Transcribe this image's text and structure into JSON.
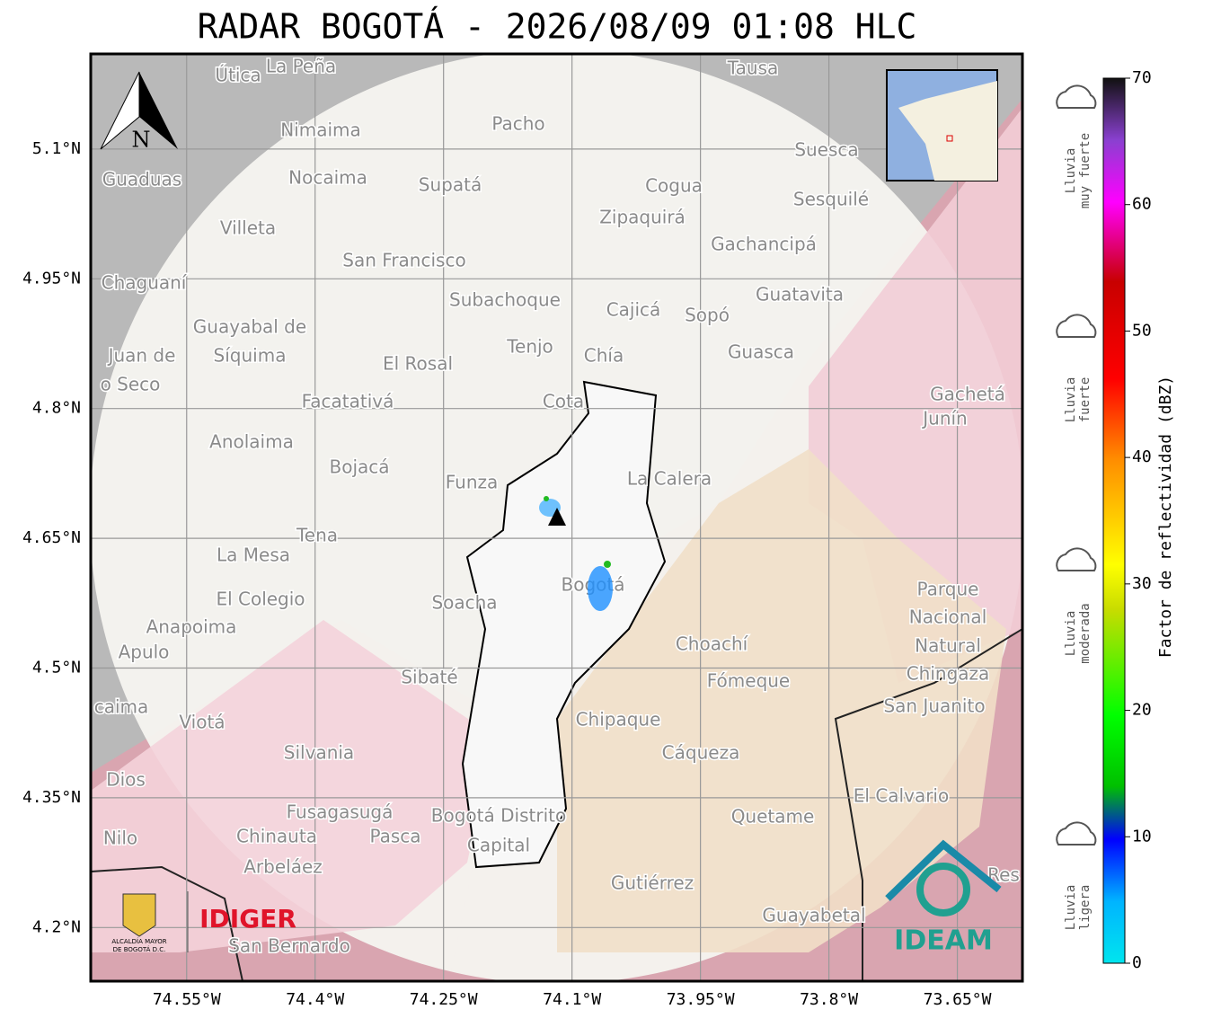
{
  "title": "RADAR BOGOTÁ - 2026/08/09 01:08 HLC",
  "map": {
    "lat_range": [
      4.138,
      5.21
    ],
    "lon_range": [
      -74.662,
      -73.574
    ],
    "lat_ticks": [
      {
        "value": 5.1,
        "label": "5.1°N"
      },
      {
        "value": 4.95,
        "label": "4.95°N"
      },
      {
        "value": 4.8,
        "label": "4.8°N"
      },
      {
        "value": 4.65,
        "label": "4.65°N"
      },
      {
        "value": 4.5,
        "label": "4.5°N"
      },
      {
        "value": 4.35,
        "label": "4.35°N"
      },
      {
        "value": 4.2,
        "label": "4.2°N"
      }
    ],
    "lon_ticks": [
      {
        "value": -74.55,
        "label": "74.55°W"
      },
      {
        "value": -74.4,
        "label": "74.4°W"
      },
      {
        "value": -74.25,
        "label": "74.25°W"
      },
      {
        "value": -74.1,
        "label": "74.1°W"
      },
      {
        "value": -73.95,
        "label": "73.95°W"
      },
      {
        "value": -73.8,
        "label": "73.8°W"
      },
      {
        "value": -73.65,
        "label": "73.65°W"
      }
    ],
    "north": "N",
    "places": [
      "Útica",
      "La Peña",
      "Tausa",
      "Pacho",
      "Nimaima",
      "Guaduas",
      "Nocaima",
      "Supatá",
      "Cogua",
      "Suesca",
      "Sesquilé",
      "Villeta",
      "Zipaquirá",
      "Gachancipá",
      "San Francisco",
      "Chaguaní",
      "Guatavita",
      "Subachoque",
      "Cajicá",
      "Sopó",
      "Guayabal de",
      "Síquima",
      "Juan de",
      "o Seco",
      "Tenjo",
      "Guasca",
      "El Rosal",
      "Chía",
      "Facatativá",
      "Cota",
      "Gachetá",
      "Junín",
      "Anolaima",
      "Bojacá",
      "Funza",
      "La Calera",
      "Tena",
      "La Mesa",
      "Soacha",
      "Bogotá",
      "El Colegio",
      "Parque",
      "Nacional",
      "Natural",
      "Chingaza",
      "Anapoima",
      "Apulo",
      "Choachí",
      "Fómeque",
      "Sibaté",
      "San Juanito",
      "caima",
      "Viotá",
      "Chipaque",
      "Silvania",
      "Cáqueza",
      "Dios",
      "El Calvario",
      "Fusagasugá",
      "Bogotá Distrito",
      "Quetame",
      "Nilo",
      "Chinauta",
      "Pasca",
      "Capital",
      "Arbeláez",
      "Gutiérrez",
      "Guayabetal",
      "San Bernardo",
      "Res"
    ],
    "logos": {
      "alcaldia": [
        "ALCALDÍA MAYOR",
        "DE BOGOTÁ D.C."
      ],
      "idiger": "IDIGER",
      "ideam": "IDEAM"
    }
  },
  "colorbar": {
    "label": "Factor de reflectividad (dBZ)",
    "range": [
      0,
      70
    ],
    "ticks": [
      0,
      10,
      20,
      30,
      40,
      50,
      60,
      70
    ]
  },
  "rain_levels": [
    {
      "lines": [
        "Lluvia",
        "muy fuerte"
      ]
    },
    {
      "lines": [
        "Lluvia",
        "fuerte"
      ]
    },
    {
      "lines": [
        "Lluvia",
        "moderada"
      ]
    },
    {
      "lines": [
        "Lluvia",
        "ligera"
      ]
    }
  ]
}
